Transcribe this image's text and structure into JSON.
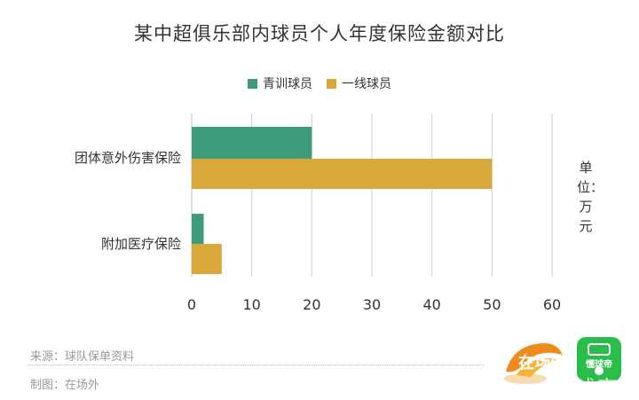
{
  "title": "某中超俱乐部内球员个人年度保险金额对比",
  "unit_label": "单位：万元",
  "footer": {
    "source": "来源：球队保单资料",
    "author": "制图：在场外"
  },
  "watermark": {
    "logo_left_text": "在场外",
    "logo_right_text": "懂球帝",
    "overlay_text": "懂球帝"
  },
  "colors": {
    "youth": "#3e9b79",
    "first_team": "#d8a93a",
    "grid": "#d0d0d0",
    "text": "#333333"
  },
  "chart_data": {
    "type": "bar",
    "orientation": "horizontal",
    "title": "某中超俱乐部内球员个人年度保险金额对比",
    "categories": [
      "团体意外伤害保险",
      "附加医疗保险"
    ],
    "series": [
      {
        "name": "青训球员",
        "values": [
          20,
          2
        ]
      },
      {
        "name": "一线球员",
        "values": [
          50,
          5
        ]
      }
    ],
    "xlim": [
      0,
      60
    ],
    "xticks": [
      0,
      10,
      20,
      30,
      40,
      50,
      60
    ],
    "unit": "万元",
    "grid": true,
    "legend": "top-center"
  }
}
